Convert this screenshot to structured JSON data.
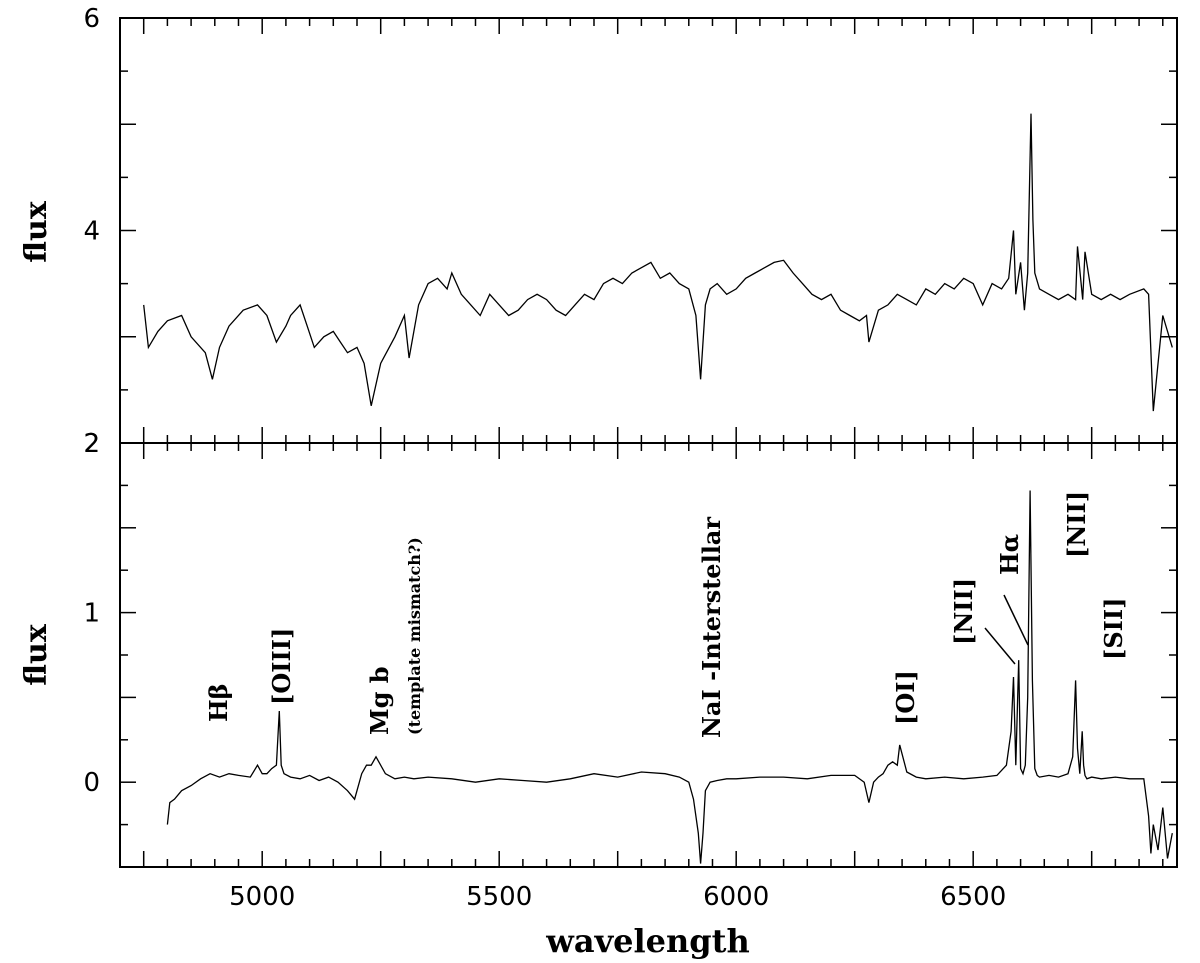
{
  "chart_data": [
    {
      "type": "line",
      "panel": "top",
      "xlabel": "",
      "ylabel": "flux",
      "xlim": [
        4700,
        6930
      ],
      "ylim": [
        2,
        6
      ],
      "y_ticks": [
        2,
        4,
        6
      ],
      "y_tick_labels": [
        "2",
        "4",
        "6"
      ],
      "series": [
        {
          "x": [
            4750,
            4760,
            4780,
            4800,
            4830,
            4850,
            4880,
            4895,
            4910,
            4930,
            4960,
            4990,
            5010,
            5030,
            5050,
            5060,
            5080,
            5095,
            5110,
            5130,
            5150,
            5165,
            5180,
            5200,
            5215,
            5230,
            5250,
            5280,
            5300,
            5310,
            5330,
            5350,
            5370,
            5390,
            5400,
            5420,
            5440,
            5460,
            5480,
            5500,
            5520,
            5540,
            5560,
            5580,
            5600,
            5620,
            5640,
            5660,
            5680,
            5700,
            5720,
            5740,
            5760,
            5780,
            5800,
            5820,
            5840,
            5860,
            5880,
            5900,
            5915,
            5925,
            5935,
            5945,
            5960,
            5980,
            6000,
            6020,
            6040,
            6060,
            6080,
            6100,
            6120,
            6140,
            6160,
            6180,
            6200,
            6220,
            6240,
            6260,
            6275,
            6280,
            6300,
            6320,
            6340,
            6360,
            6380,
            6400,
            6420,
            6440,
            6460,
            6480,
            6500,
            6520,
            6540,
            6560,
            6575,
            6585,
            6590,
            6600,
            6608,
            6615,
            6622,
            6626,
            6630,
            6640,
            6660,
            6680,
            6700,
            6716,
            6720,
            6731,
            6736,
            6750,
            6770,
            6790,
            6810,
            6830,
            6860,
            6870,
            6880,
            6900,
            6920
          ],
          "y": [
            3.3,
            2.9,
            3.05,
            3.15,
            3.2,
            3.0,
            2.85,
            2.6,
            2.9,
            3.1,
            3.25,
            3.3,
            3.2,
            2.95,
            3.1,
            3.2,
            3.3,
            3.1,
            2.9,
            3.0,
            3.05,
            2.95,
            2.85,
            2.9,
            2.75,
            2.35,
            2.75,
            3.0,
            3.2,
            2.8,
            3.3,
            3.5,
            3.55,
            3.45,
            3.6,
            3.4,
            3.3,
            3.2,
            3.4,
            3.3,
            3.2,
            3.25,
            3.35,
            3.4,
            3.35,
            3.25,
            3.2,
            3.3,
            3.4,
            3.35,
            3.5,
            3.55,
            3.5,
            3.6,
            3.65,
            3.7,
            3.55,
            3.6,
            3.5,
            3.45,
            3.2,
            2.6,
            3.3,
            3.45,
            3.5,
            3.4,
            3.45,
            3.55,
            3.6,
            3.65,
            3.7,
            3.72,
            3.6,
            3.5,
            3.4,
            3.35,
            3.4,
            3.25,
            3.2,
            3.15,
            3.2,
            2.95,
            3.25,
            3.3,
            3.4,
            3.35,
            3.3,
            3.45,
            3.4,
            3.5,
            3.45,
            3.55,
            3.5,
            3.3,
            3.5,
            3.45,
            3.55,
            4.0,
            3.4,
            3.7,
            3.25,
            3.6,
            5.1,
            4.1,
            3.6,
            3.45,
            3.4,
            3.35,
            3.4,
            3.35,
            3.85,
            3.35,
            3.8,
            3.4,
            3.35,
            3.4,
            3.35,
            3.4,
            3.45,
            3.4,
            2.3,
            3.2,
            2.9
          ]
        }
      ]
    },
    {
      "type": "line",
      "panel": "bottom",
      "xlabel": "wavelength",
      "ylabel": "flux",
      "xlim": [
        4700,
        6930
      ],
      "ylim": [
        -0.5,
        2
      ],
      "x_ticks": [
        5000,
        5500,
        6000,
        6500
      ],
      "x_tick_labels": [
        "5000",
        "5500",
        "6000",
        "6500"
      ],
      "y_ticks": [
        0,
        1,
        2
      ],
      "y_tick_labels": [
        "0",
        "1",
        "2"
      ],
      "series": [
        {
          "x": [
            4800,
            4805,
            4815,
            4830,
            4850,
            4870,
            4890,
            4910,
            4930,
            4950,
            4975,
            4990,
            5000,
            5010,
            5020,
            5030,
            5036,
            5040,
            5046,
            5060,
            5080,
            5100,
            5120,
            5140,
            5160,
            5180,
            5195,
            5210,
            5220,
            5230,
            5240,
            5260,
            5280,
            5300,
            5320,
            5350,
            5400,
            5450,
            5500,
            5550,
            5600,
            5650,
            5700,
            5750,
            5800,
            5850,
            5880,
            5900,
            5910,
            5920,
            5925,
            5930,
            5935,
            5945,
            5960,
            5980,
            6000,
            6050,
            6100,
            6150,
            6200,
            6250,
            6270,
            6280,
            6290,
            6300,
            6310,
            6320,
            6330,
            6340,
            6345,
            6360,
            6380,
            6400,
            6440,
            6480,
            6520,
            6550,
            6570,
            6580,
            6585,
            6590,
            6596,
            6600,
            6605,
            6610,
            6615,
            6620,
            6625,
            6630,
            6635,
            6640,
            6660,
            6680,
            6700,
            6710,
            6716,
            6720,
            6725,
            6730,
            6733,
            6736,
            6740,
            6750,
            6770,
            6800,
            6830,
            6860,
            6870,
            6875,
            6880,
            6890,
            6900,
            6910,
            6920
          ],
          "y": [
            -0.25,
            -0.12,
            -0.1,
            -0.05,
            -0.02,
            0.02,
            0.05,
            0.03,
            0.05,
            0.04,
            0.03,
            0.1,
            0.05,
            0.05,
            0.08,
            0.1,
            0.42,
            0.1,
            0.05,
            0.03,
            0.02,
            0.04,
            0.01,
            0.03,
            0.0,
            -0.05,
            -0.1,
            0.05,
            0.1,
            0.1,
            0.15,
            0.05,
            0.02,
            0.03,
            0.02,
            0.03,
            0.02,
            0.0,
            0.02,
            0.01,
            0.0,
            0.02,
            0.05,
            0.03,
            0.06,
            0.05,
            0.03,
            0.0,
            -0.1,
            -0.3,
            -0.48,
            -0.3,
            -0.05,
            0.0,
            0.01,
            0.02,
            0.02,
            0.03,
            0.03,
            0.02,
            0.04,
            0.04,
            0.0,
            -0.12,
            0.0,
            0.03,
            0.05,
            0.1,
            0.12,
            0.1,
            0.22,
            0.06,
            0.03,
            0.02,
            0.03,
            0.02,
            0.03,
            0.04,
            0.1,
            0.3,
            0.62,
            0.1,
            0.72,
            0.08,
            0.05,
            0.1,
            0.5,
            1.72,
            0.6,
            0.08,
            0.04,
            0.03,
            0.04,
            0.03,
            0.05,
            0.15,
            0.6,
            0.2,
            0.05,
            0.3,
            0.1,
            0.04,
            0.02,
            0.03,
            0.02,
            0.03,
            0.02,
            0.02,
            -0.2,
            -0.42,
            -0.25,
            -0.4,
            -0.15,
            -0.45,
            -0.3
          ]
        }
      ]
    }
  ],
  "annotations": {
    "hbeta": "Hβ",
    "oiii": "[OIII]",
    "mgb": "Mg b",
    "mgb_note": "(template mismatch?)",
    "nai": "NaI -Interstellar",
    "oi": "[OI]",
    "nii_left": "[NII]",
    "halpha": "Hα",
    "nii_right": "[NII]",
    "sii": "[SII]"
  }
}
